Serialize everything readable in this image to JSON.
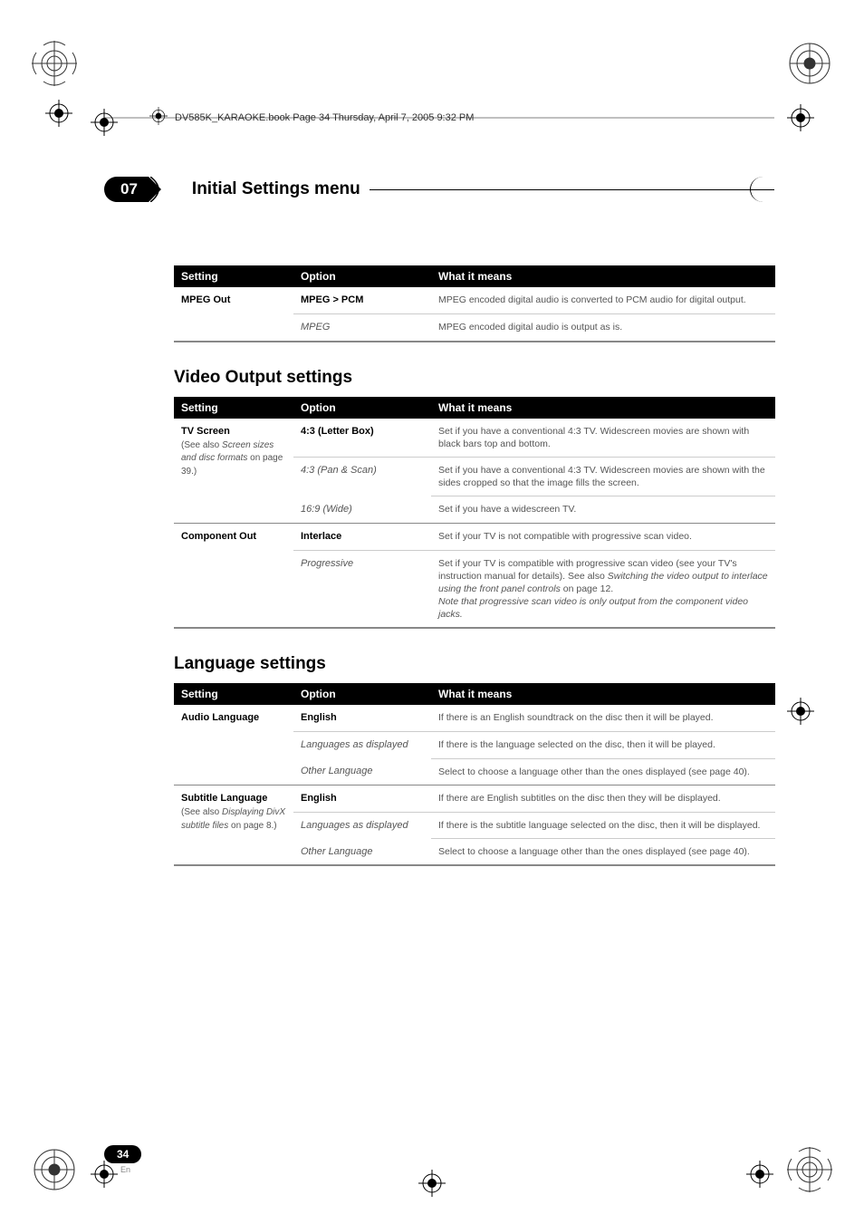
{
  "header": {
    "book_line": "DV585K_KARAOKE.book  Page 34  Thursday, April 7, 2005  9:32 PM"
  },
  "chapter": {
    "number": "07",
    "title": "Initial Settings menu"
  },
  "tables": {
    "top": {
      "headers": [
        "Setting",
        "Option",
        "What it means"
      ],
      "rows": [
        {
          "setting": "MPEG Out",
          "option": "MPEG > PCM",
          "option_style": "bold",
          "desc": "MPEG encoded digital audio is converted to PCM audio for digital output.",
          "divider": "light"
        },
        {
          "setting": "",
          "option": "MPEG",
          "option_style": "italic",
          "desc": "MPEG encoded digital audio is output as is.",
          "divider": "heavy"
        }
      ]
    },
    "video": {
      "title": "Video Output settings",
      "headers": [
        "Setting",
        "Option",
        "What it means"
      ],
      "rows": [
        {
          "setting": "TV Screen",
          "setting_sub": "(See also Screen sizes and disc formats on page 39.)",
          "option": "4:3 (Letter Box)",
          "option_style": "bold",
          "desc": "Set if you have a conventional 4:3 TV. Widescreen movies are shown with black bars top and bottom.",
          "divider": "light",
          "rowspan": 3
        },
        {
          "option": "4:3 (Pan & Scan)",
          "option_style": "italic",
          "desc": "Set if you have a conventional 4:3 TV. Widescreen movies are shown with the sides cropped so that the image fills the screen.",
          "divider": "light"
        },
        {
          "option": "16:9 (Wide)",
          "option_style": "italic",
          "desc": "Set if you have a widescreen TV.",
          "divider": "mid"
        },
        {
          "setting": "Component Out",
          "option": "Interlace",
          "option_style": "bold",
          "desc": "Set if your TV is not compatible with progressive scan video.",
          "divider": "light",
          "rowspan": 2
        },
        {
          "option": "Progressive",
          "option_style": "italic",
          "desc_html": "Set if your TV is compatible with progressive scan video (see your TV's instruction manual for details). See also <em>Switching the video output to interlace using the front panel controls</em> on page 12.<br><em>Note that progressive scan video is only output from the component video jacks.</em>",
          "divider": "heavy"
        }
      ]
    },
    "language": {
      "title": "Language settings",
      "headers": [
        "Setting",
        "Option",
        "What it means"
      ],
      "rows": [
        {
          "setting": "Audio Language",
          "option": "English",
          "option_style": "bold",
          "desc": "If there is an English soundtrack on the disc then it will be played.",
          "divider": "light",
          "rowspan": 3
        },
        {
          "option": "Languages as displayed",
          "option_style": "italic",
          "desc": "If there is the language selected on the disc, then it will be played.",
          "divider": "light"
        },
        {
          "option": "Other Language",
          "option_style": "italic",
          "desc": "Select to choose a language other than the ones displayed (see page 40).",
          "divider": "mid"
        },
        {
          "setting": "Subtitle Language",
          "setting_sub": "(See also Displaying DivX subtitle files on page 8.)",
          "option": "English",
          "option_style": "bold",
          "desc": "If there are English subtitles on the disc then they will be displayed.",
          "divider": "light",
          "rowspan": 3
        },
        {
          "option": "Languages as displayed",
          "option_style": "italic",
          "desc": "If there is the subtitle language selected on the disc, then it will be displayed.",
          "divider": "light"
        },
        {
          "option": "Other Language",
          "option_style": "italic",
          "desc": "Select to choose a language other than the ones displayed (see page 40).",
          "divider": "heavy"
        }
      ]
    }
  },
  "footer": {
    "page_number": "34",
    "lang": "En"
  }
}
